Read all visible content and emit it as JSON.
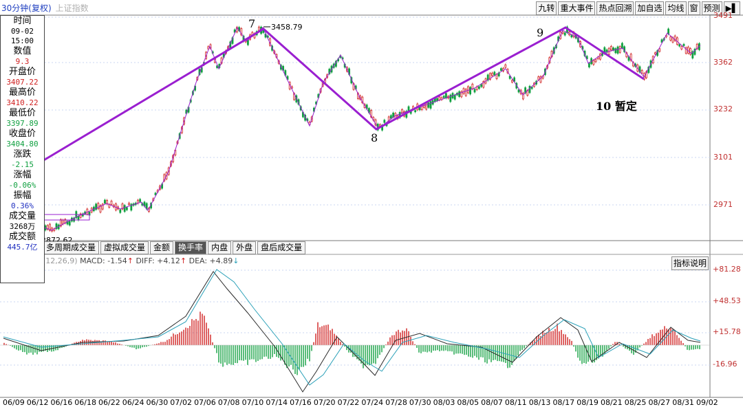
{
  "header": {
    "period": "30分钟(复权)",
    "index_name": "上证指数"
  },
  "toolbar": {
    "buttons": [
      "九转",
      "重大事件",
      "热点回溯",
      "加自选",
      "均线",
      "窗",
      "预测"
    ]
  },
  "info_panel": {
    "time_label": "时间",
    "date": "09-02",
    "time": "15:00",
    "value_label": "数值",
    "value": "9.3",
    "open_label": "开盘价",
    "open": "3407.22",
    "high_label": "最高价",
    "high": "3410.22",
    "low_label": "最低价",
    "low": "3397.89",
    "close_label": "收盘价",
    "close": "3404.80",
    "change_label": "涨跌",
    "change": "-2.15",
    "change_pct_label": "涨幅",
    "change_pct": "-0.06%",
    "amplitude_label": "振幅",
    "amplitude": "0.36%",
    "volume_label": "成交量",
    "volume": "3268万",
    "amount_label": "成交额",
    "amount": "445.7亿"
  },
  "price_axis": {
    "ticks": [
      "3491",
      "3362",
      "3232",
      "3101",
      "2971"
    ]
  },
  "annotations": {
    "peak_price": "3458.79",
    "low_price": "2872.62",
    "wave7": "7",
    "wave8": "8",
    "wave9": "9",
    "wave10": "10 暂定"
  },
  "indicator_tabs": [
    "多周期成交量",
    "虚拟成交量",
    "金额",
    "换手率",
    "内盘",
    "外盘",
    "盘后成交量"
  ],
  "active_tab": "换手率",
  "macd": {
    "params": "(12,26,9)",
    "macd_label": "MACD: -1.54",
    "diff_label": "DIFF: +4.12",
    "dea_label": "DEA: +4.89",
    "explain_label": "指标说明",
    "ticks": [
      "+81.28",
      "+48.53",
      "+15.78",
      "-16.96"
    ]
  },
  "x_axis": {
    "ticks": [
      "06/09",
      "06/12",
      "06/16",
      "06/18",
      "06/22",
      "06/24",
      "06/30",
      "07/02",
      "07/06",
      "07/08",
      "07/10",
      "07/14",
      "07/16",
      "07/20",
      "07/22",
      "07/24",
      "07/28",
      "07/30",
      "08/03",
      "08/05",
      "08/07",
      "08/11",
      "08/13",
      "08/17",
      "08/19",
      "08/21",
      "08/25",
      "08/27",
      "08/31",
      "09/02"
    ]
  },
  "colors": {
    "up": "#d02020",
    "down": "#10a040",
    "wave": "#9a1fd0",
    "grid": "#c9d6f0",
    "axis_text": "#c03030",
    "label": "#1a20b0"
  },
  "icons": {
    "arrow": "right-arrow-icon",
    "window": "window-icon"
  }
}
